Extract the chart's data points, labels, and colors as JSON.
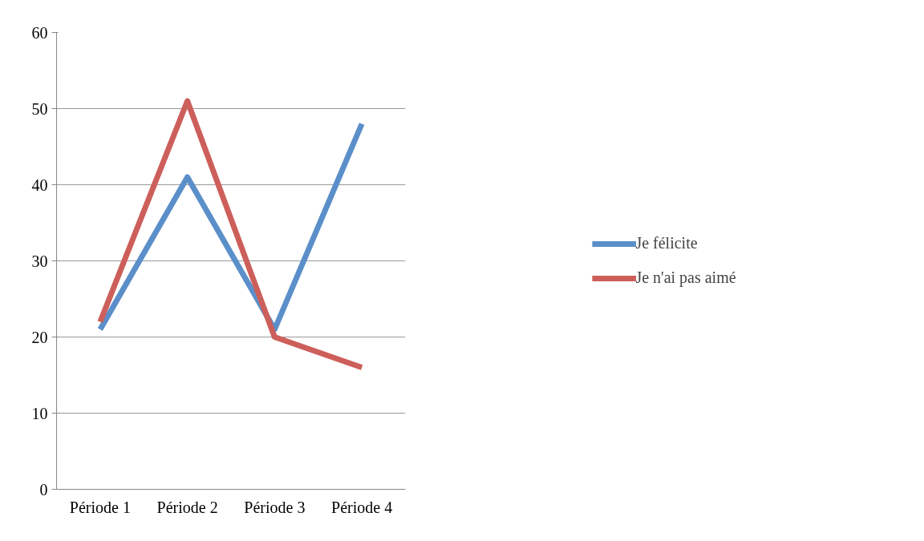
{
  "chart_data": {
    "type": "line",
    "categories": [
      "Période 1",
      "Période 2",
      "Période 3",
      "Période 4"
    ],
    "series": [
      {
        "name": "Je félicite",
        "color": "#5b8fc9",
        "values": [
          21,
          41,
          21,
          48
        ]
      },
      {
        "name": "Je n'ai pas aimé",
        "color": "#cd5f5a",
        "values": [
          22,
          51,
          20,
          16
        ]
      }
    ],
    "ylim": [
      0,
      60
    ],
    "yticks": [
      0,
      10,
      20,
      30,
      40,
      50,
      60
    ],
    "grid": "y",
    "legend": "right",
    "marker": "none",
    "line_style": "solid"
  }
}
